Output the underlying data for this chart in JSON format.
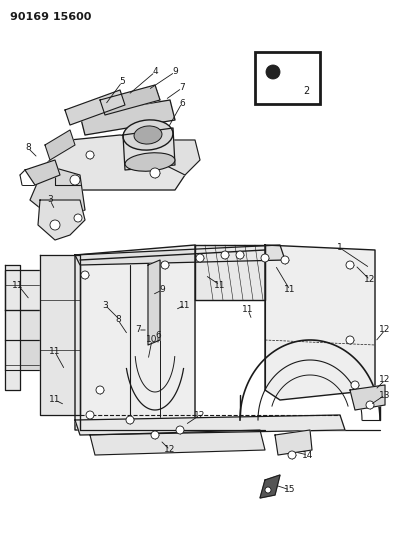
{
  "title": "90169 15600",
  "bg_color": "#ffffff",
  "line_color": "#1a1a1a",
  "title_fontsize": 8,
  "title_weight": "bold",
  "figsize": [
    3.97,
    5.33
  ],
  "dpi": 100
}
